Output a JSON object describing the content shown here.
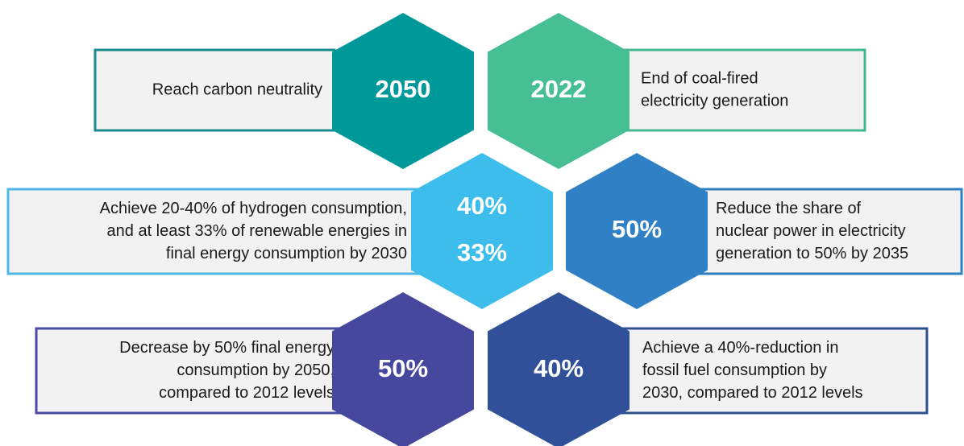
{
  "items": [
    {
      "hex": [
        "2050"
      ],
      "text": [
        "Reach carbon neutrality"
      ]
    },
    {
      "hex": [
        "2022"
      ],
      "text": [
        "End of coal-fired",
        "electricity generation"
      ]
    },
    {
      "hex": [
        "40%",
        "33%"
      ],
      "text": [
        "Achieve 20-40% of hydrogen consumption,",
        "and at least 33% of renewable energies in",
        "final energy consumption by 2030"
      ]
    },
    {
      "hex": [
        "50%"
      ],
      "text": [
        "Reduce the share of",
        "nuclear power in electricity",
        "generation to 50% by 2035"
      ]
    },
    {
      "hex": [
        "50%"
      ],
      "text": [
        "Decrease by 50% final energy",
        "consumption by 2050,",
        "compared to 2012 levels"
      ]
    },
    {
      "hex": [
        "40%"
      ],
      "text": [
        "Achieve a 40%-reduction in",
        "fossil fuel consumption by",
        "2030, compared to 2012 levels"
      ]
    }
  ]
}
